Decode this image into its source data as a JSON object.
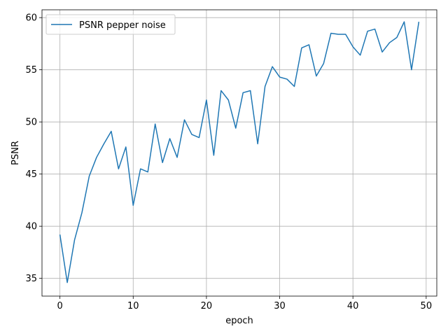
{
  "chart_data": {
    "type": "line",
    "xlabel": "epoch",
    "ylabel": "PSNR",
    "xlim": [
      -2.45,
      51.45
    ],
    "ylim": [
      33.3,
      60.75
    ],
    "xticks": [
      0,
      10,
      20,
      30,
      40,
      50
    ],
    "yticks": [
      35,
      40,
      45,
      50,
      55,
      60
    ],
    "grid": true,
    "legend_position": "upper-left",
    "series": [
      {
        "name": "PSNR pepper noise",
        "color": "#1f77b4",
        "x": [
          0,
          1,
          2,
          3,
          4,
          5,
          6,
          7,
          8,
          9,
          10,
          11,
          12,
          13,
          14,
          15,
          16,
          17,
          18,
          19,
          20,
          21,
          22,
          23,
          24,
          25,
          26,
          27,
          28,
          29,
          30,
          31,
          32,
          33,
          34,
          35,
          36,
          37,
          38,
          39,
          40,
          41,
          42,
          43,
          44,
          45,
          46,
          47,
          48,
          49
        ],
        "y": [
          39.2,
          34.6,
          38.7,
          41.3,
          44.8,
          46.6,
          47.9,
          49.1,
          45.5,
          47.6,
          42.0,
          45.5,
          45.2,
          49.8,
          46.1,
          48.4,
          46.6,
          50.2,
          48.8,
          48.5,
          52.1,
          46.8,
          53.0,
          52.1,
          49.4,
          52.8,
          53.0,
          47.9,
          53.4,
          55.3,
          54.3,
          54.1,
          53.4,
          57.1,
          57.4,
          54.4,
          55.6,
          58.5,
          58.4,
          58.4,
          57.2,
          56.4,
          58.7,
          58.9,
          56.7,
          57.6,
          58.1,
          59.6,
          55.0,
          59.6
        ]
      }
    ]
  }
}
